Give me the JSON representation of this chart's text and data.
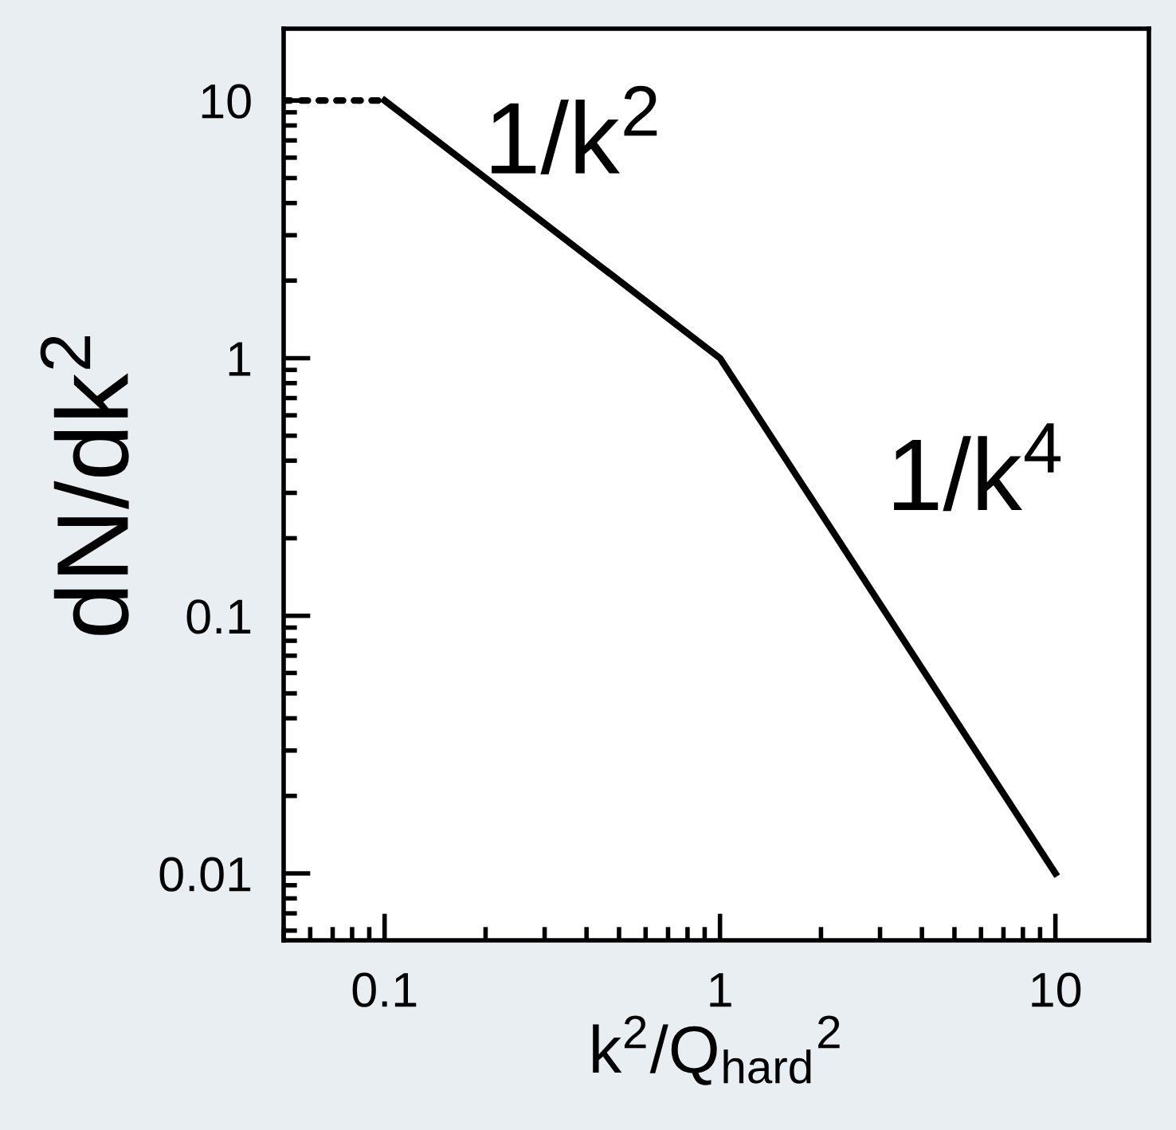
{
  "chart_data": {
    "type": "line",
    "xlabel": "k$^{2}$/Q$_{hard}$$^{2}$",
    "ylabel": "dN/dk$^{2}$",
    "log": "xy",
    "series": [
      {
        "x": [
          0.05,
          0.1
        ],
        "values": [
          10,
          10
        ],
        "color": "#000000",
        "line_style": "dotted"
      },
      {
        "x": [
          0.1,
          1,
          10
        ],
        "values": [
          10,
          1,
          0.01
        ],
        "color": "#000000",
        "line_style": "solid"
      }
    ],
    "annotations": [
      "1/k$^{2}$",
      "1/k$^{4}$"
    ],
    "xlim": [
      0.05,
      19
    ],
    "ylim": [
      0.0055,
      19
    ],
    "xticks": [
      0.1,
      1,
      10
    ],
    "yticks": [
      0.01,
      0.1,
      1,
      10
    ],
    "grid": false,
    "legend": false,
    "marker": "none"
  }
}
